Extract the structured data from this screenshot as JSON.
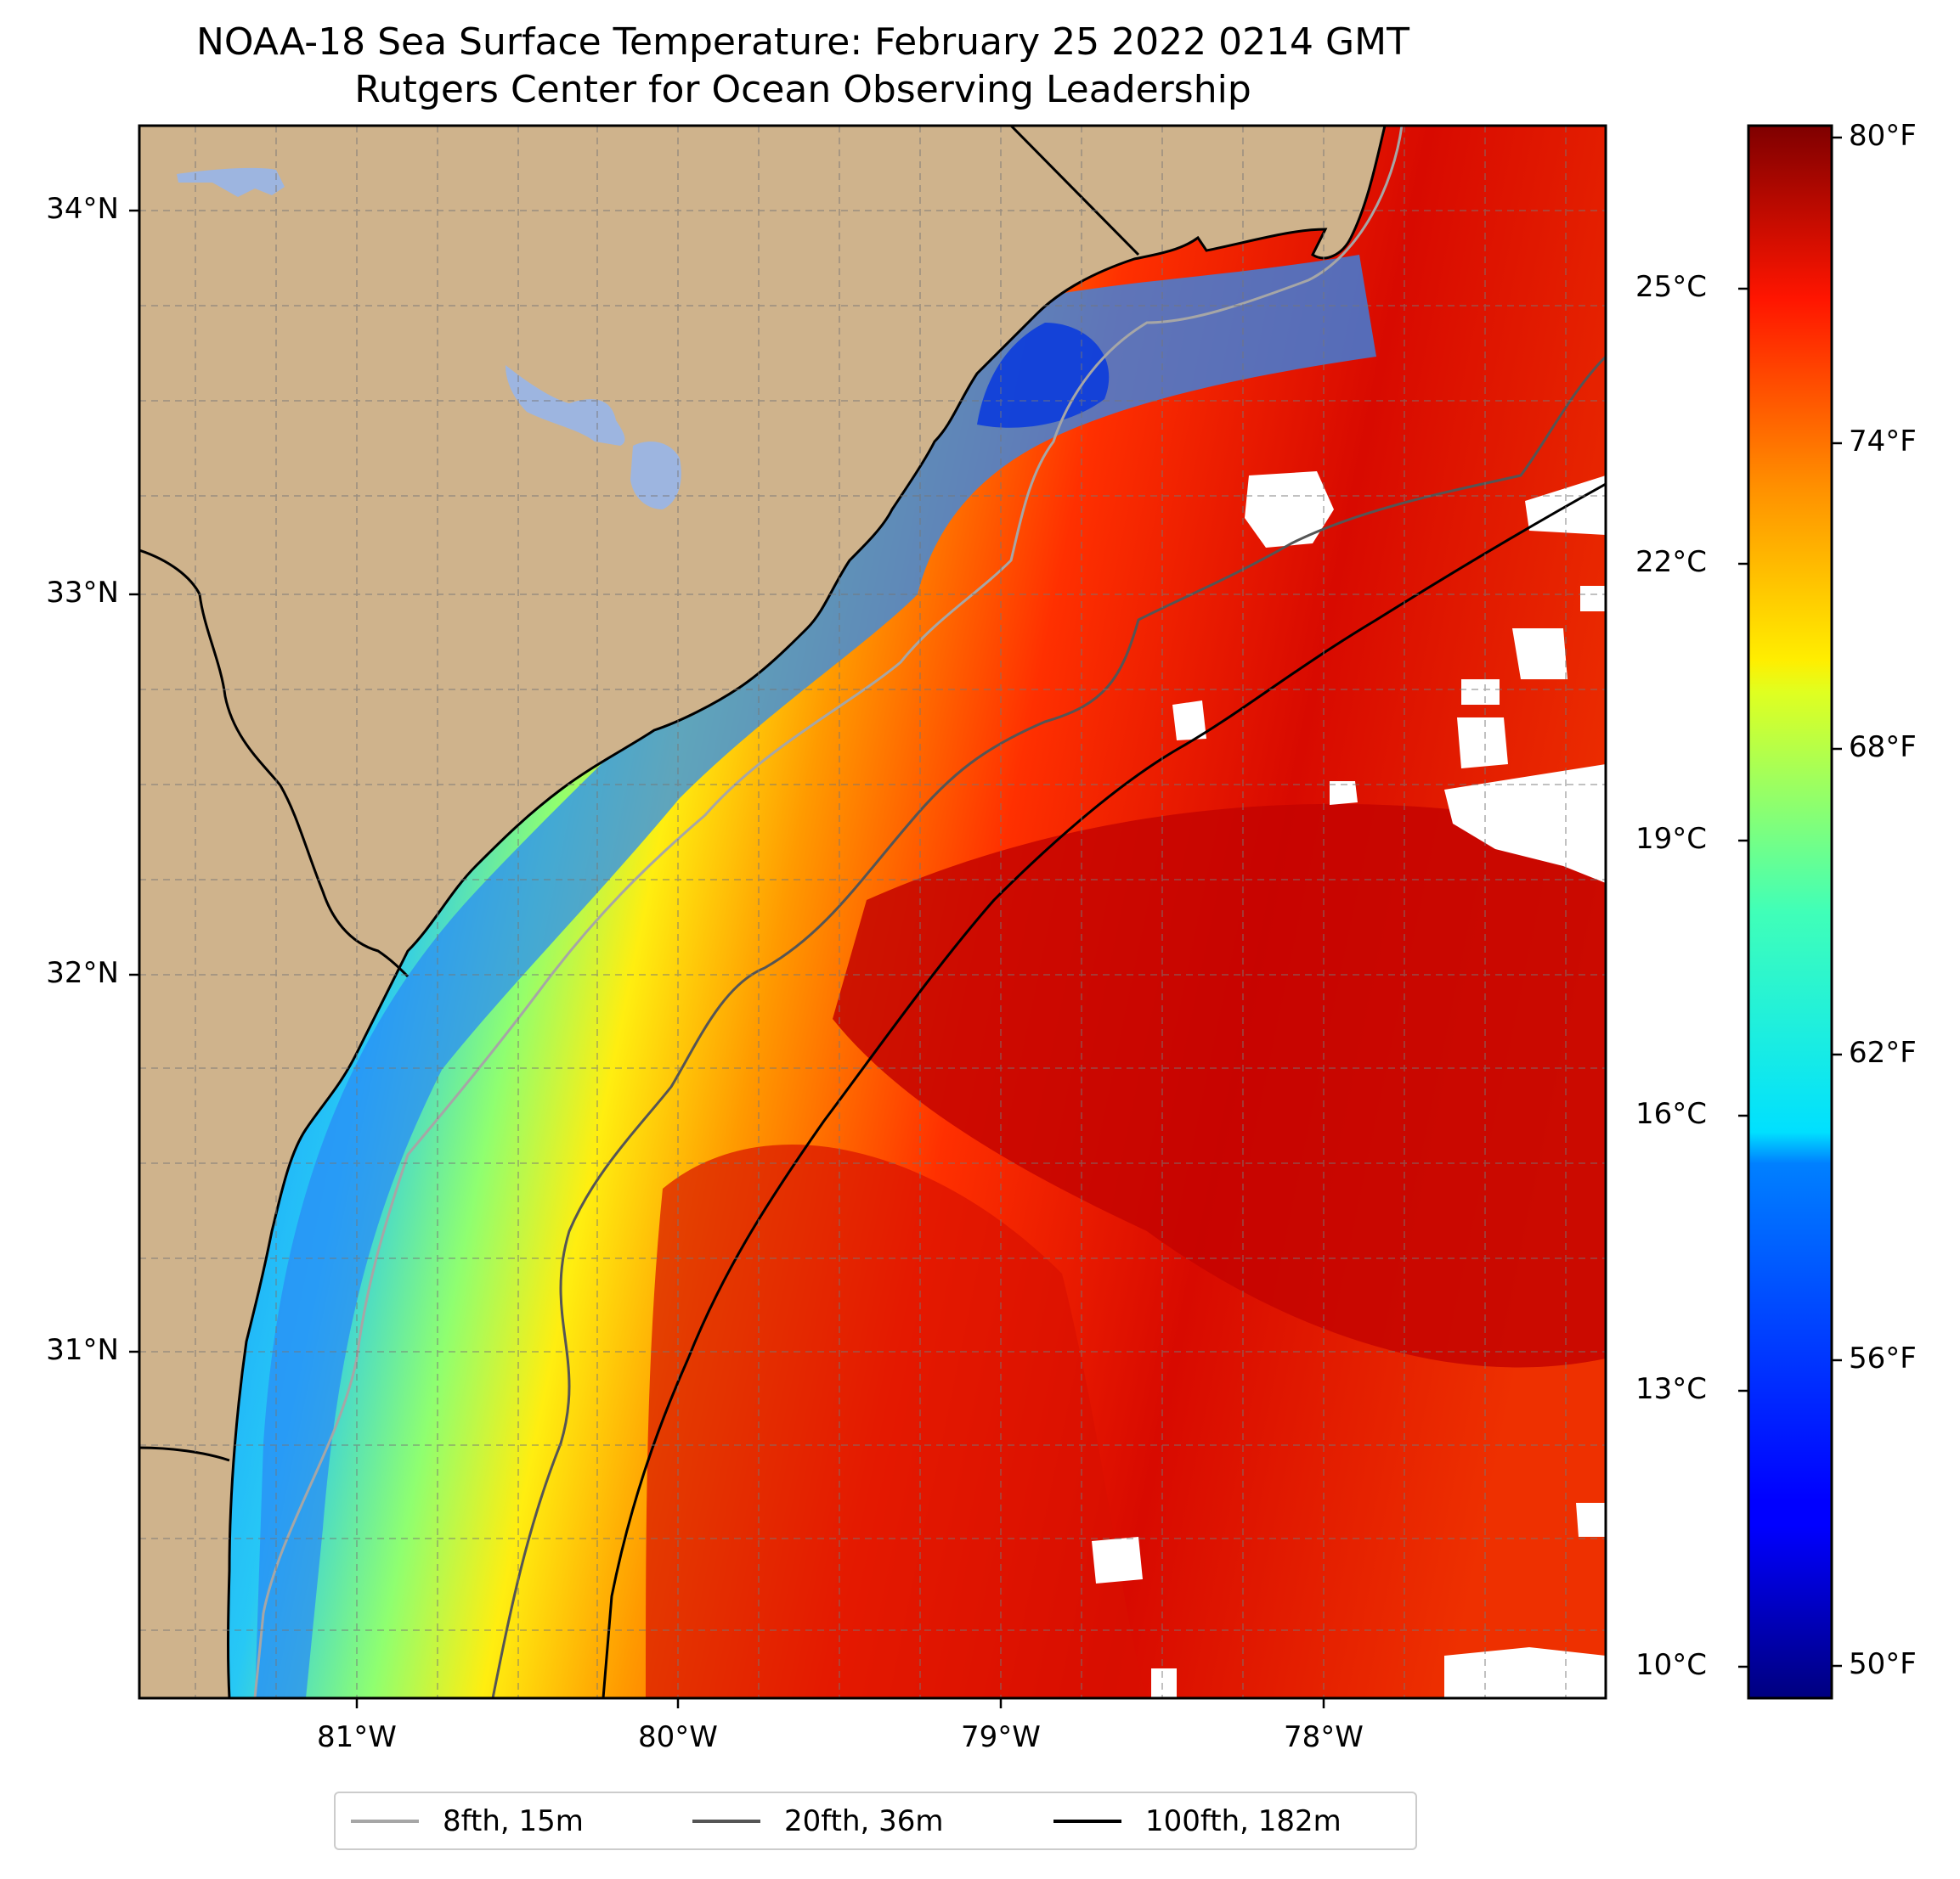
{
  "title": "NOAA-18 Sea Surface Temperature: February 25 2022 0214 GMT",
  "subtitle": "Rutgers Center for Ocean Observing Leadership",
  "map": {
    "lat_labels": [
      "34°N",
      "33°N",
      "32°N",
      "31°N"
    ],
    "lon_labels": [
      "81°W",
      "80°W",
      "79°W",
      "78°W"
    ],
    "land_color": "#cfb38c",
    "lake_color": "#9db5e0",
    "cloud_color": "#ffffff"
  },
  "colorbar": {
    "colormap": "jet",
    "celsius_labels": [
      "25°C",
      "22°C",
      "19°C",
      "16°C",
      "13°C",
      "10°C"
    ],
    "fahrenheit_labels": [
      "80°F",
      "74°F",
      "68°F",
      "62°F",
      "56°F",
      "50°F"
    ]
  },
  "legend": {
    "items": [
      {
        "label": "8fth, 15m",
        "color": "#a6a6a6"
      },
      {
        "label": "20fth, 36m",
        "color": "#555555"
      },
      {
        "label": "100fth, 182m",
        "color": "#000000"
      }
    ]
  }
}
